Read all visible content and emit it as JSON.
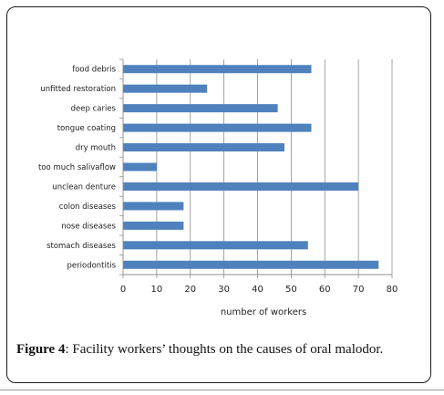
{
  "chart_data": {
    "type": "bar",
    "orientation": "horizontal",
    "categories": [
      "food debris",
      "unfitted restoration",
      "deep caries",
      "tongue coating",
      "dry mouth",
      "too much salivaflow",
      "unclean denture",
      "colon diseases",
      "nose diseases",
      "stomach diseases",
      "periodontitis"
    ],
    "values": [
      56,
      25,
      46,
      56,
      48,
      10,
      70,
      18,
      18,
      55,
      76
    ],
    "xlabel": "number of workers",
    "ylabel": "",
    "xlim": [
      0,
      80
    ],
    "ticks": [
      "0",
      "10",
      "20",
      "30",
      "40",
      "50",
      "60",
      "70",
      "80"
    ],
    "grid": true,
    "bar_color": "#4f81bd"
  },
  "caption": {
    "label": "Figure 4",
    "text": ": Facility workers’ thoughts on the causes of oral malodor."
  }
}
